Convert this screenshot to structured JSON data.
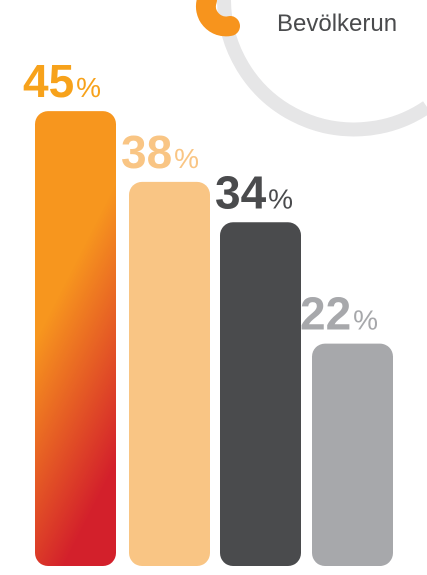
{
  "chart_data": {
    "type": "bar",
    "categories": [
      "",
      "",
      "",
      ""
    ],
    "values": [
      45,
      38,
      34,
      22
    ],
    "value_suffix": "%",
    "ylim": [
      0,
      55
    ],
    "colors": [
      "#f7a21b",
      "#f9c584",
      "#4a4b4d",
      "#a7a8ab"
    ],
    "gradient_first_bar": {
      "top": "#f7961e",
      "bottom": "#d3202b"
    },
    "accent_arc_color": "#f7941d",
    "ring_color": "#e6e6e7"
  },
  "header": {
    "partial_label": "Bevölkerun"
  }
}
